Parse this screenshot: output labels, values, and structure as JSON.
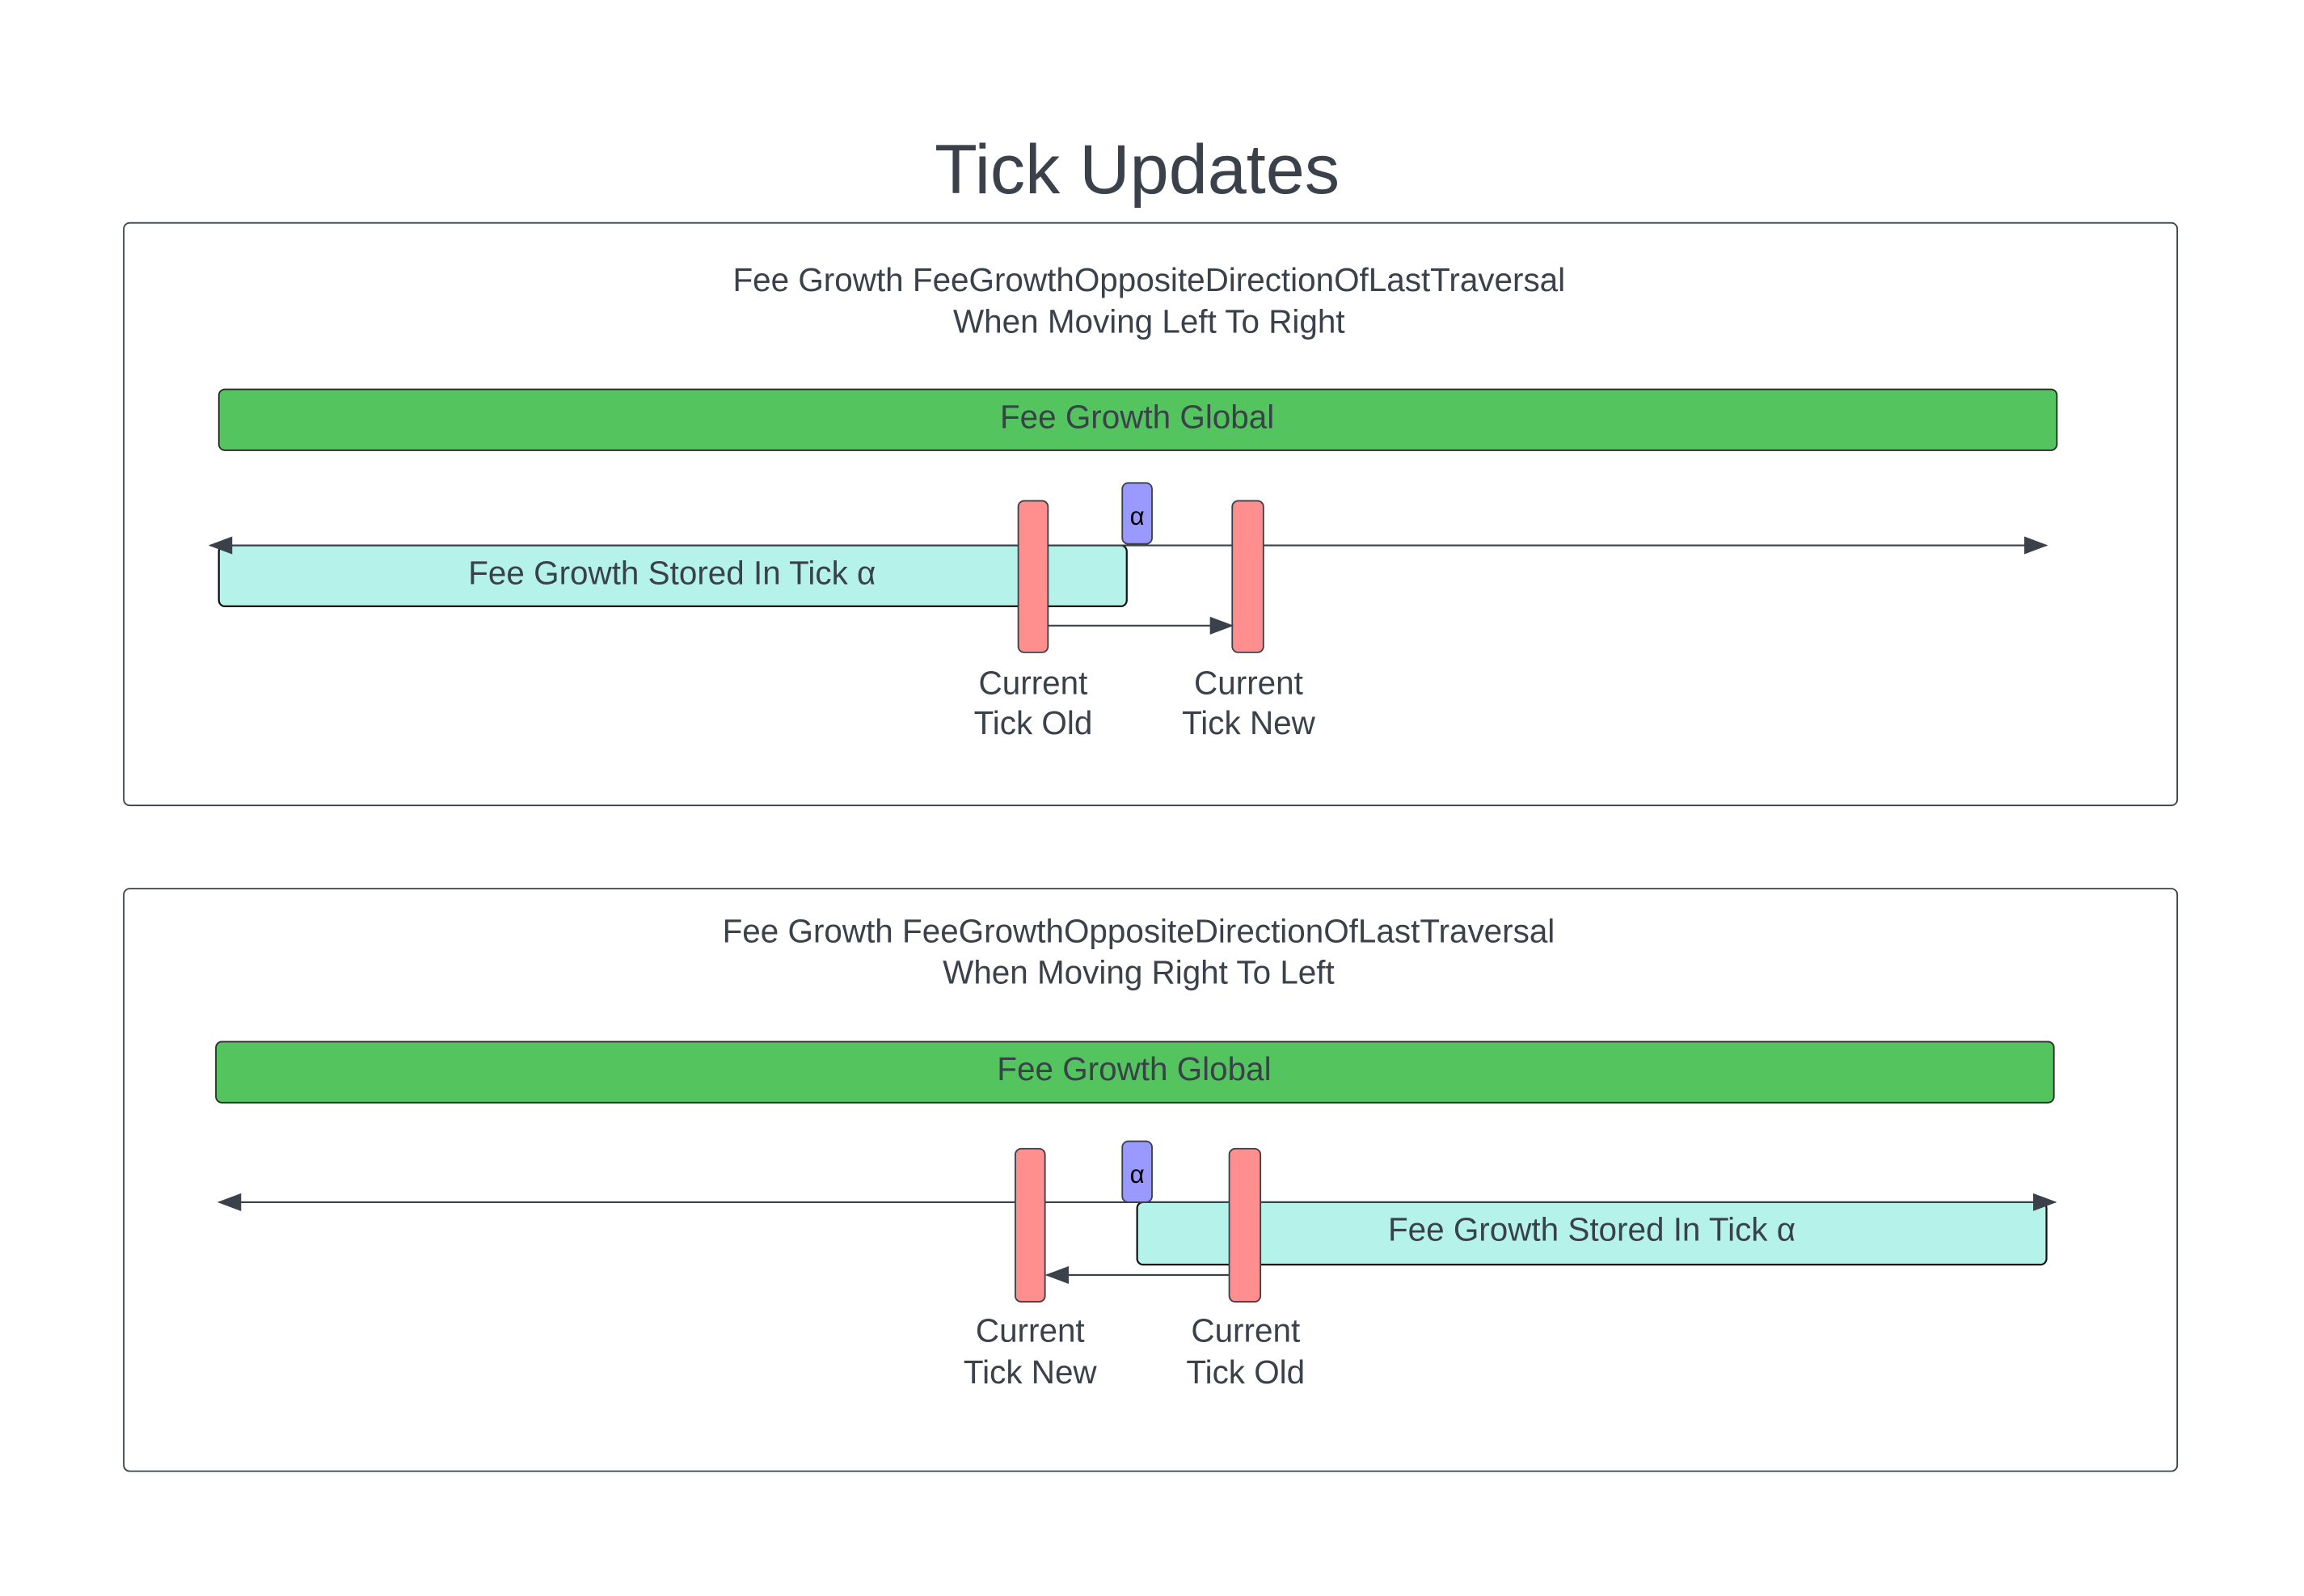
{
  "title": "Tick Updates",
  "colors": {
    "fee_global": "#54c45e",
    "fee_stored": "#b5f3ea",
    "tick": "#ff8e8e",
    "alpha": "#9999ff",
    "line": "#3a414a"
  },
  "panels": [
    {
      "heading_line1": "Fee Growth FeeGrowthOppositeDirectionOfLastTraversal",
      "heading_line2": "When Moving Left To Right",
      "global_label": "Fee Growth Global",
      "stored_label": "Fee Growth Stored In Tick α",
      "alpha_label": "α",
      "tick_a": {
        "line1": "Current",
        "line2": "Tick Old"
      },
      "tick_b": {
        "line1": "Current",
        "line2": "Tick New"
      }
    },
    {
      "heading_line1": "Fee Growth FeeGrowthOppositeDirectionOfLastTraversal",
      "heading_line2": "When Moving Right To Left",
      "global_label": "Fee Growth Global",
      "stored_label": "Fee Growth Stored In Tick α",
      "alpha_label": "α",
      "tick_a": {
        "line1": "Current",
        "line2": "Tick New"
      },
      "tick_b": {
        "line1": "Current",
        "line2": "Tick Old"
      }
    }
  ]
}
